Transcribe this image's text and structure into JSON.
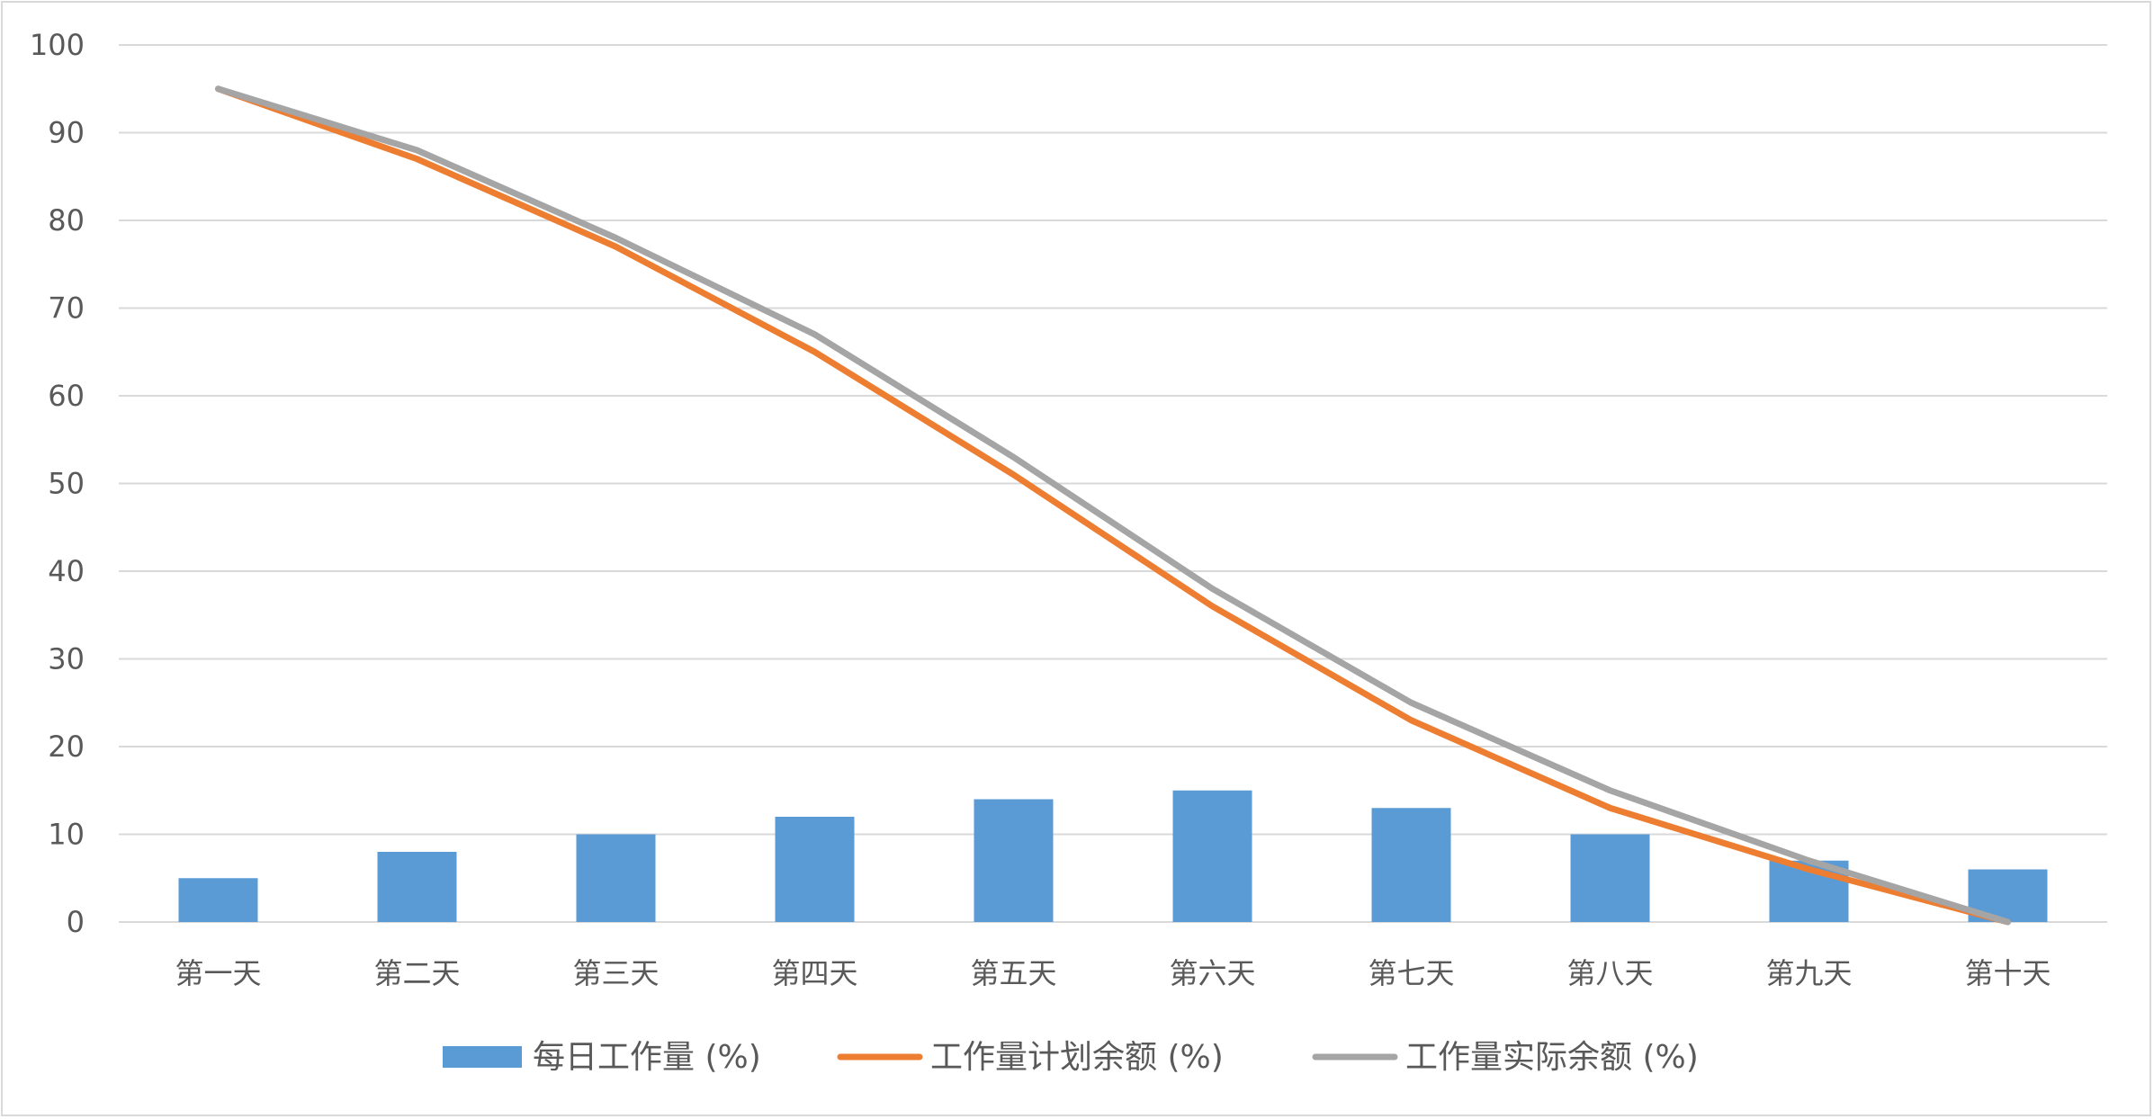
{
  "chart_data": {
    "type": "bar",
    "title": "",
    "xlabel": "",
    "ylabel": "",
    "categories": [
      "第一天",
      "第二天",
      "第三天",
      "第四天",
      "第五天",
      "第六天",
      "第七天",
      "第八天",
      "第九天",
      "第十天"
    ],
    "ylim": [
      0,
      100
    ],
    "yticks": [
      0,
      10,
      20,
      30,
      40,
      50,
      60,
      70,
      80,
      90,
      100
    ],
    "grid": true,
    "legend_position": "bottom",
    "series": [
      {
        "name": "每日工作量 (%)",
        "kind": "bar",
        "color": "#5b9bd5",
        "values": [
          5,
          8,
          10,
          12,
          14,
          15,
          13,
          10,
          7,
          6
        ]
      },
      {
        "name": "工作量计划余额 (%)",
        "kind": "line",
        "color": "#ed7d31",
        "values": [
          95,
          87,
          77,
          65,
          51,
          36,
          23,
          13,
          6,
          0
        ]
      },
      {
        "name": "工作量实际余额 (%)",
        "kind": "line",
        "color": "#a5a5a5",
        "values": [
          95,
          88,
          78,
          67,
          53,
          38,
          25,
          15,
          7,
          0
        ]
      }
    ]
  }
}
